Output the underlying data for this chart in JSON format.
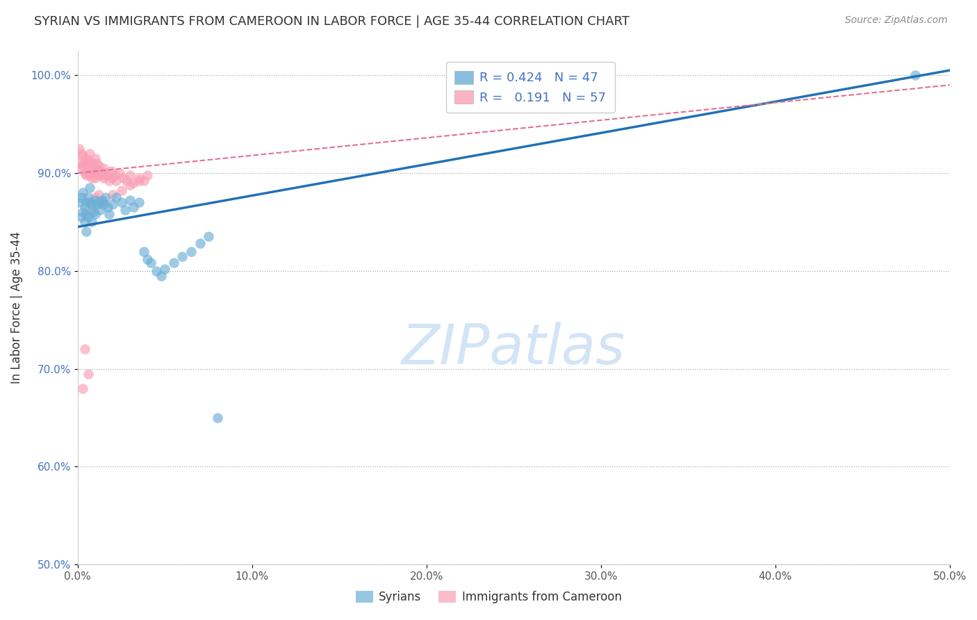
{
  "title": "SYRIAN VS IMMIGRANTS FROM CAMEROON IN LABOR FORCE | AGE 35-44 CORRELATION CHART",
  "source": "Source: ZipAtlas.com",
  "ylabel": "In Labor Force | Age 35-44",
  "xlim": [
    0.0,
    0.5
  ],
  "ylim": [
    0.5,
    1.025
  ],
  "xticks": [
    0.0,
    0.1,
    0.2,
    0.3,
    0.4,
    0.5
  ],
  "yticks": [
    0.5,
    0.6,
    0.7,
    0.8,
    0.9,
    1.0
  ],
  "ytick_labels": [
    "50.0%",
    "60.0%",
    "70.0%",
    "80.0%",
    "90.0%",
    "100.0%"
  ],
  "xtick_labels": [
    "0.0%",
    "10.0%",
    "20.0%",
    "30.0%",
    "40.0%",
    "50.0%"
  ],
  "legend_labels": [
    "Syrians",
    "Immigrants from Cameroon"
  ],
  "R_syrian": 0.424,
  "N_syrian": 47,
  "R_cameroon": 0.191,
  "N_cameroon": 57,
  "color_syrian": "#6baed6",
  "color_cameroon": "#fa9fb5",
  "color_syrian_line": "#2171b5",
  "color_cameroon_line": "#e07090",
  "background_color": "#ffffff",
  "title_fontsize": 13,
  "axis_label_fontsize": 12,
  "tick_fontsize": 11,
  "syrian_x": [
    0.001,
    0.002,
    0.002,
    0.003,
    0.003,
    0.004,
    0.004,
    0.005,
    0.005,
    0.005,
    0.006,
    0.006,
    0.007,
    0.007,
    0.008,
    0.008,
    0.009,
    0.01,
    0.01,
    0.011,
    0.012,
    0.013,
    0.014,
    0.015,
    0.016,
    0.017,
    0.018,
    0.02,
    0.022,
    0.025,
    0.027,
    0.03,
    0.032,
    0.035,
    0.038,
    0.04,
    0.042,
    0.045,
    0.048,
    0.05,
    0.055,
    0.06,
    0.065,
    0.07,
    0.075,
    0.08,
    0.48
  ],
  "syrian_y": [
    0.87,
    0.855,
    0.875,
    0.86,
    0.88,
    0.865,
    0.85,
    0.87,
    0.858,
    0.84,
    0.875,
    0.855,
    0.87,
    0.885,
    0.85,
    0.868,
    0.86,
    0.872,
    0.858,
    0.868,
    0.87,
    0.862,
    0.872,
    0.868,
    0.875,
    0.865,
    0.858,
    0.868,
    0.875,
    0.87,
    0.862,
    0.872,
    0.865,
    0.87,
    0.82,
    0.812,
    0.808,
    0.8,
    0.795,
    0.802,
    0.808,
    0.815,
    0.82,
    0.828,
    0.835,
    0.65,
    1.0
  ],
  "cameroon_x": [
    0.001,
    0.001,
    0.002,
    0.002,
    0.003,
    0.003,
    0.004,
    0.004,
    0.005,
    0.005,
    0.005,
    0.006,
    0.006,
    0.007,
    0.007,
    0.007,
    0.008,
    0.008,
    0.009,
    0.009,
    0.01,
    0.01,
    0.01,
    0.011,
    0.011,
    0.012,
    0.012,
    0.013,
    0.014,
    0.015,
    0.015,
    0.016,
    0.017,
    0.018,
    0.019,
    0.02,
    0.021,
    0.022,
    0.024,
    0.026,
    0.028,
    0.03,
    0.032,
    0.035,
    0.038,
    0.04,
    0.02,
    0.025,
    0.03,
    0.035,
    0.01,
    0.012,
    0.015,
    0.008,
    0.006,
    0.003,
    0.004
  ],
  "cameroon_y": [
    0.91,
    0.925,
    0.905,
    0.92,
    0.908,
    0.918,
    0.912,
    0.9,
    0.915,
    0.908,
    0.898,
    0.912,
    0.9,
    0.91,
    0.898,
    0.92,
    0.905,
    0.895,
    0.91,
    0.9,
    0.905,
    0.895,
    0.915,
    0.9,
    0.91,
    0.898,
    0.908,
    0.902,
    0.898,
    0.905,
    0.895,
    0.9,
    0.898,
    0.892,
    0.902,
    0.895,
    0.898,
    0.892,
    0.9,
    0.895,
    0.892,
    0.898,
    0.89,
    0.895,
    0.892,
    0.898,
    0.878,
    0.882,
    0.888,
    0.892,
    0.875,
    0.878,
    0.87,
    0.862,
    0.695,
    0.68,
    0.72
  ],
  "syrian_line_x0": 0.0,
  "syrian_line_y0": 0.845,
  "syrian_line_x1": 0.5,
  "syrian_line_y1": 1.005,
  "cameroon_line_x0": 0.0,
  "cameroon_line_y0": 0.9,
  "cameroon_line_x1": 0.5,
  "cameroon_line_y1": 0.99
}
